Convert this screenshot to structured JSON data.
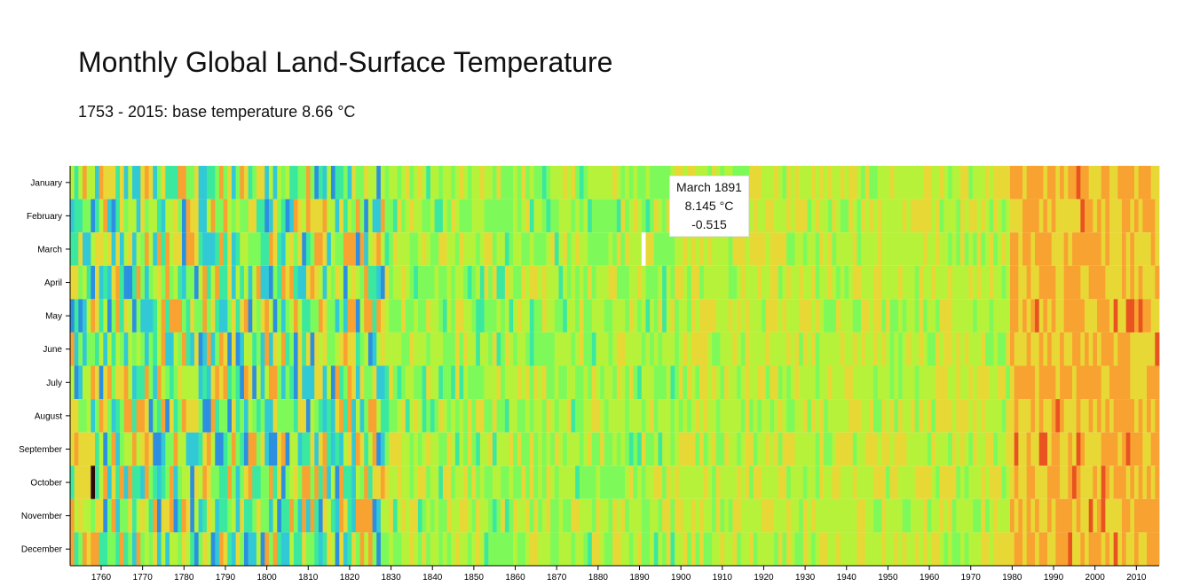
{
  "header": {
    "title": "Monthly Global Land-Surface Temperature",
    "subtitle": "1753 - 2015: base temperature 8.66 °C"
  },
  "tooltip": {
    "date": "March 1891",
    "temperature": "8.145 °C",
    "variance": "-0.515"
  },
  "chart_data": {
    "type": "heatmap",
    "title": "Monthly Global Land-Surface Temperature",
    "subtitle": "1753 - 2015: base temperature 8.66 °C",
    "base_temperature": 8.66,
    "x_range": [
      1753,
      2015
    ],
    "xlabel": "",
    "ylabel": "",
    "y_categories": [
      "January",
      "February",
      "March",
      "April",
      "May",
      "June",
      "July",
      "August",
      "September",
      "October",
      "November",
      "December"
    ],
    "x_ticks": [
      1760,
      1770,
      1780,
      1790,
      1800,
      1810,
      1820,
      1830,
      1840,
      1850,
      1860,
      1870,
      1880,
      1890,
      1900,
      1910,
      1920,
      1930,
      1940,
      1950,
      1960,
      1970,
      1980,
      1990,
      2000,
      2010
    ],
    "colors": [
      "#2a3bd1",
      "#2d8fe0",
      "#32c9d6",
      "#3be8a0",
      "#7dfa5a",
      "#b6f23a",
      "#e8d836",
      "#f8a231",
      "#e8531f",
      "#b11208",
      "#2b0a08"
    ],
    "highlight": {
      "year": 1891,
      "month": "March",
      "temperature": 8.145,
      "variance": -0.515,
      "color": "#ffffff"
    },
    "grid": false,
    "legend": "none"
  }
}
